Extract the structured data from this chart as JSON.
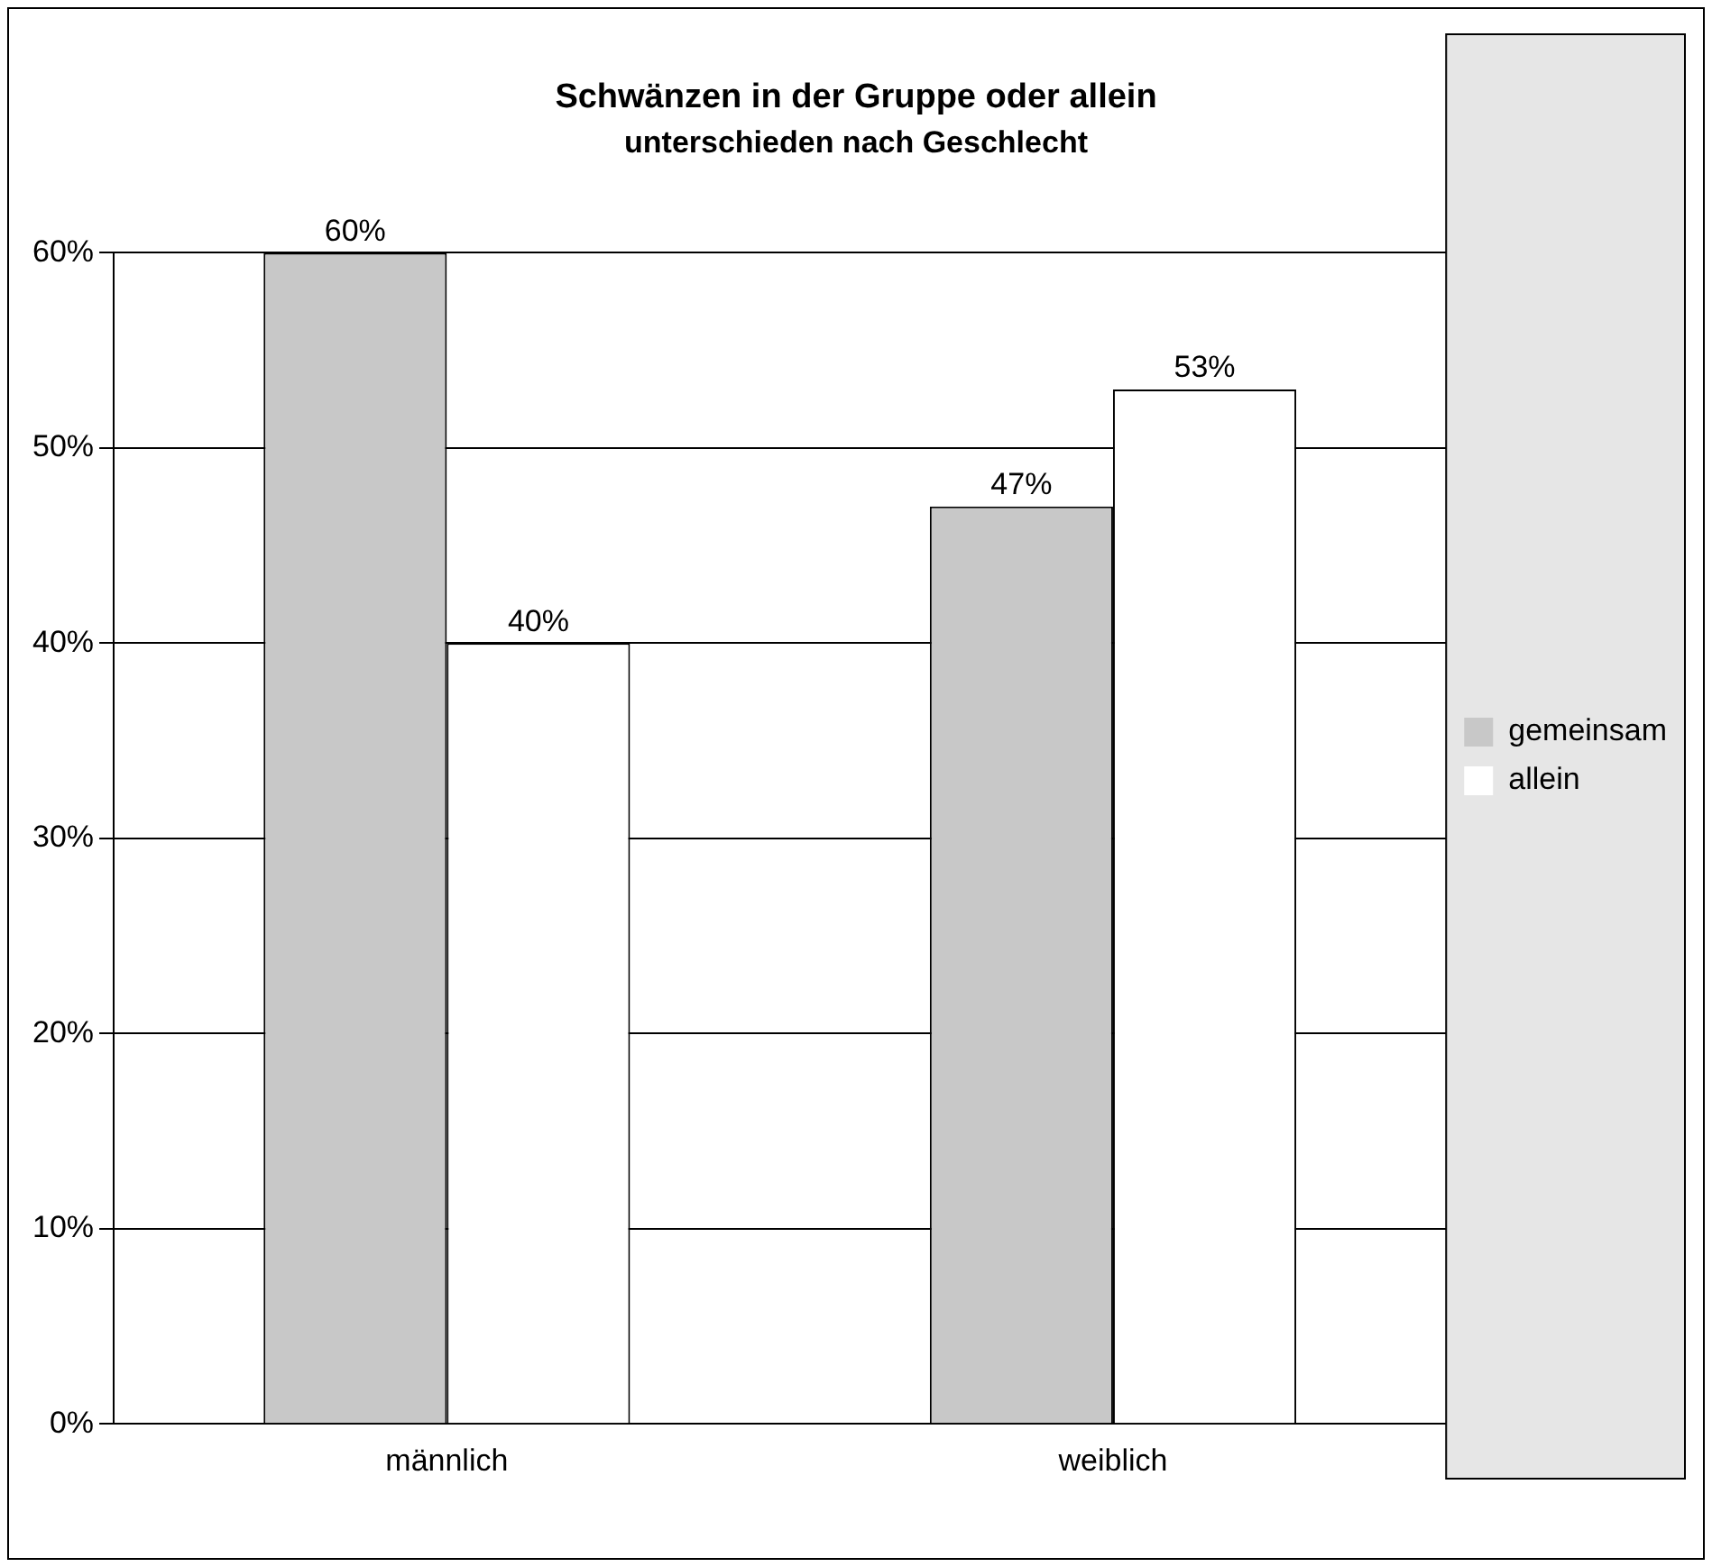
{
  "chart_data": {
    "type": "bar",
    "title": "Schwänzen in der Gruppe oder allein",
    "subtitle": "unterschieden nach Geschlecht",
    "categories": [
      "männlich",
      "weiblich"
    ],
    "series": [
      {
        "name": "gemeinsam",
        "color": "#c8c8c8",
        "values": [
          60,
          47
        ],
        "value_labels": [
          "60%",
          "47%"
        ]
      },
      {
        "name": "allein",
        "color": "#ffffff",
        "values": [
          40,
          53
        ],
        "value_labels": [
          "40%",
          "53%"
        ]
      }
    ],
    "ylim": [
      0,
      60
    ],
    "yticks": [
      {
        "value": 0,
        "label": "0%"
      },
      {
        "value": 10,
        "label": "10%"
      },
      {
        "value": 20,
        "label": "20%"
      },
      {
        "value": 30,
        "label": "30%"
      },
      {
        "value": 40,
        "label": "40%"
      },
      {
        "value": 50,
        "label": "50%"
      },
      {
        "value": 60,
        "label": "60%"
      }
    ],
    "grid": "y",
    "legend": "right"
  }
}
